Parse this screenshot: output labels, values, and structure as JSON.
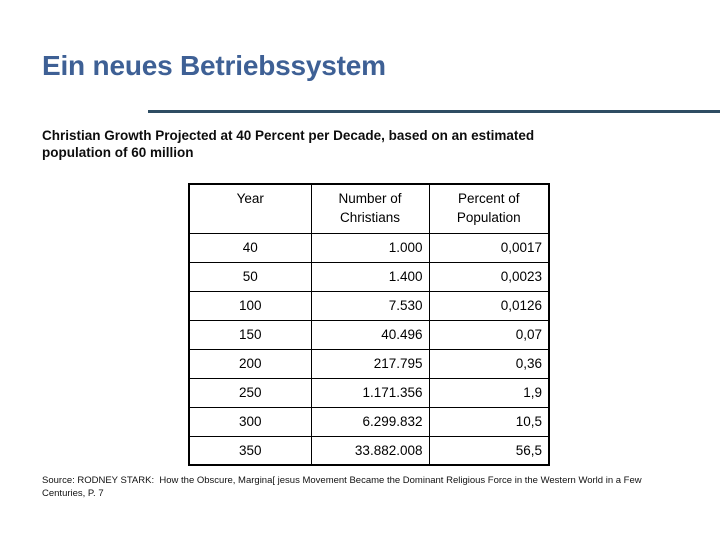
{
  "slide": {
    "title": "Ein neues Betriebssystem",
    "subtitle_lines": [
      "Christian Growth Projected at 40 Percent per Decade, based on an estimated",
      "population of 60 million"
    ],
    "source_lines": [
      "Source: RODNEY STARK:  How the Obscure, Margina[ jesus Movement Became the Dominant Religious Force in the Western World in a Few",
      "Centuries, P. 7"
    ]
  },
  "table": {
    "headers": [
      "Year",
      "Number of\nChristians",
      "Percent of\nPopulation"
    ],
    "rows": [
      [
        "40",
        "1.000",
        "0,0017"
      ],
      [
        "50",
        "1.400",
        "0,0023"
      ],
      [
        "100",
        "7.530",
        "0,0126"
      ],
      [
        "150",
        "40.496",
        "0,07"
      ],
      [
        "200",
        "217.795",
        "0,36"
      ],
      [
        "250",
        "1.171.356",
        "1,9"
      ],
      [
        "300",
        "6.299.832",
        "10,5"
      ],
      [
        "350",
        "33.882.008",
        "56,5"
      ]
    ]
  },
  "chart_data": {
    "type": "table",
    "title": "Christian Growth Projected at 40 Percent per Decade, based on an estimated population of 60 million",
    "columns": [
      "Year",
      "Number of Christians",
      "Percent of Population"
    ],
    "years": [
      40,
      50,
      100,
      150,
      200,
      250,
      300,
      350
    ],
    "number_of_christians": [
      1000,
      1400,
      7530,
      40496,
      217795,
      1171356,
      6299832,
      33882008
    ],
    "percent_of_population": [
      0.0017,
      0.0023,
      0.0126,
      0.07,
      0.36,
      1.9,
      10.5,
      56.5
    ],
    "number_format": "German style: dot = thousands separator, comma = decimal separator"
  },
  "colors": {
    "title_text": "#3E6095",
    "divider": "#2E4D63",
    "table_border": "#000000",
    "body_text": "#111111",
    "background": "#FFFFFF"
  }
}
